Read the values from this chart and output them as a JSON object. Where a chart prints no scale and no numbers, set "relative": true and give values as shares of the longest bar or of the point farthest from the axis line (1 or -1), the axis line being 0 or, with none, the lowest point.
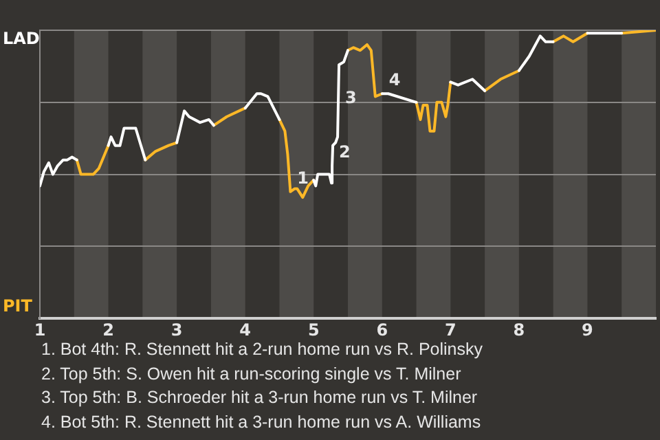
{
  "chart_data": {
    "type": "line",
    "relative": true,
    "x": [
      1,
      1.06,
      1.13,
      1.19,
      1.26,
      1.34,
      1.4,
      1.47,
      1.54,
      1.6,
      1.78,
      1.86,
      2,
      2.04,
      2.1,
      2.17,
      2.23,
      2.4,
      2.54,
      2.69,
      2.88,
      3,
      3.11,
      3.18,
      3.34,
      3.47,
      3.54,
      3.73,
      4,
      4.17,
      4.23,
      4.33,
      4.5,
      4.58,
      4.62,
      4.66,
      4.72,
      4.76,
      4.84,
      4.92,
      5,
      5.03,
      5.06,
      5.23,
      5.26,
      5.27,
      5.28,
      5.32,
      5.35,
      5.37,
      5.44,
      5.5,
      5.58,
      5.68,
      5.78,
      5.84,
      5.9,
      6,
      6.09,
      6.5,
      6.56,
      6.6,
      6.66,
      6.7,
      6.76,
      6.8,
      6.87,
      6.93,
      6.96,
      7,
      7.11,
      7.32,
      7.5,
      7.73,
      8,
      8.15,
      8.31,
      8.39,
      8.5,
      8.65,
      8.79,
      9,
      9.39,
      9.5,
      10
    ],
    "series": [
      {
        "color": "#ffffff",
        "values": [
          0.46,
          0.51,
          0.54,
          0.5,
          0.53,
          0.55,
          0.55,
          0.56,
          0.55,
          null,
          null,
          null,
          0.6,
          0.63,
          0.6,
          0.6,
          0.66,
          0.66,
          0.55,
          null,
          null,
          0.61,
          0.72,
          0.7,
          0.68,
          0.69,
          0.67,
          null,
          0.73,
          0.78,
          0.78,
          0.77,
          0.69,
          null,
          null,
          null,
          null,
          null,
          null,
          null,
          0.48,
          0.46,
          0.5,
          0.5,
          0.47,
          0.53,
          0.6,
          0.61,
          0.63,
          0.88,
          0.89,
          0.93,
          null,
          null,
          null,
          null,
          null,
          0.78,
          0.78,
          0.75,
          null,
          null,
          null,
          null,
          null,
          null,
          null,
          null,
          null,
          0.82,
          0.81,
          0.83,
          0.79,
          null,
          0.86,
          0.91,
          0.98,
          0.96,
          0.96,
          null,
          null,
          0.99,
          0.99,
          0.99,
          null
        ]
      },
      {
        "color": "#fdb827",
        "values": [
          null,
          null,
          null,
          null,
          null,
          null,
          null,
          null,
          0.55,
          0.5,
          0.5,
          0.52,
          0.6,
          null,
          null,
          null,
          null,
          null,
          0.55,
          0.58,
          0.6,
          0.61,
          null,
          null,
          null,
          null,
          0.67,
          0.7,
          0.73,
          null,
          null,
          null,
          0.69,
          0.65,
          0.57,
          0.44,
          0.45,
          0.45,
          0.42,
          0.46,
          0.48,
          null,
          null,
          null,
          null,
          null,
          null,
          null,
          null,
          null,
          null,
          0.93,
          0.94,
          0.93,
          0.95,
          0.93,
          0.77,
          0.78,
          null,
          0.75,
          0.69,
          0.74,
          0.74,
          0.65,
          0.65,
          0.75,
          0.75,
          0.7,
          0.74,
          0.82,
          null,
          null,
          0.79,
          0.83,
          0.86,
          null,
          null,
          null,
          0.96,
          0.98,
          0.96,
          0.99,
          null,
          0.99,
          1
        ]
      }
    ],
    "xlim": [
      1,
      10
    ],
    "xticks": [
      1,
      2,
      3,
      4,
      5,
      6,
      7,
      8,
      9
    ],
    "grid": "y",
    "bands": [
      {
        "axis": "x",
        "from": 1.5,
        "to": 2,
        "color": "#4d4b48"
      },
      {
        "axis": "x",
        "from": 2.5,
        "to": 3,
        "color": "#4d4b48"
      },
      {
        "axis": "x",
        "from": 3.5,
        "to": 4,
        "color": "#4d4b48"
      },
      {
        "axis": "x",
        "from": 4.5,
        "to": 5,
        "color": "#4d4b48"
      },
      {
        "axis": "x",
        "from": 5.5,
        "to": 6,
        "color": "#4d4b48"
      },
      {
        "axis": "x",
        "from": 6.5,
        "to": 7,
        "color": "#4d4b48"
      },
      {
        "axis": "x",
        "from": 7.5,
        "to": 8,
        "color": "#4d4b48"
      },
      {
        "axis": "x",
        "from": 8.5,
        "to": 9,
        "color": "#4d4b48"
      },
      {
        "axis": "x",
        "from": 9.5,
        "to": 10,
        "color": "#4d4b48"
      }
    ],
    "annotations": [
      "LAD",
      "PIT",
      {
        "text": "1",
        "x": 4.66,
        "y": 0.44
      },
      {
        "text": "2",
        "x": 5.27,
        "y": 0.53
      },
      {
        "text": "3",
        "x": 5.36,
        "y": 0.72
      },
      {
        "text": "4",
        "x": 6,
        "y": 0.78
      },
      "1. Bot 4th: R. Stennett hit a 2-run home run vs R. Polinsky",
      "2. Top 5th: S. Owen hit a run-scoring single vs T. Milner",
      "3. Top 5th: B. Schroeder hit a 3-run home run vs T. Milner",
      "4. Bot 5th: R. Stennett hit a 3-run home run vs A. Williams"
    ]
  }
}
